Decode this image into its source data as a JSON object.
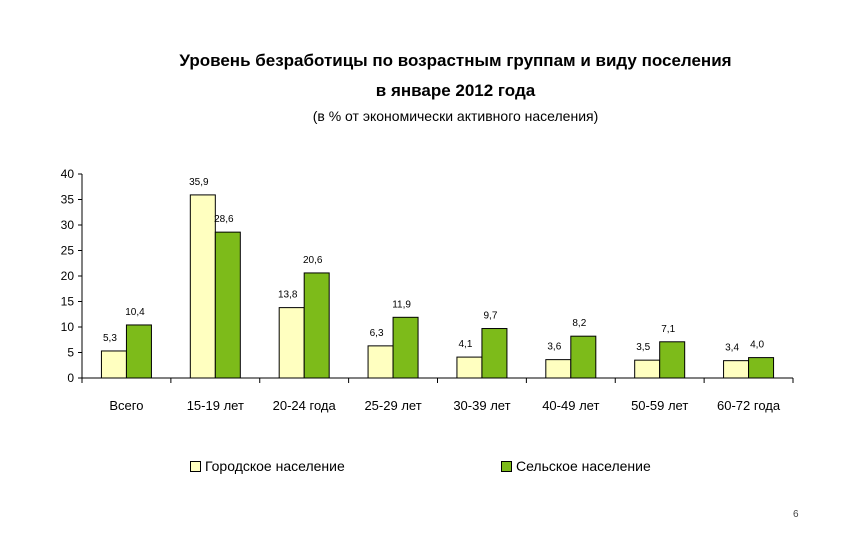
{
  "header": {
    "title_line1": "Уровень безработицы по возрастным группам и виду поселения",
    "title_line2": "в январе 2012 года",
    "subtitle": "(в % от экономически активного населения)"
  },
  "page_number": "6",
  "colors": {
    "urban": "#FFFFC0",
    "rural": "#7DBB1A"
  },
  "chart_data": {
    "type": "bar",
    "title": "Уровень безработицы по возрастным группам и виду поселения в январе 2012 года",
    "subtitle": "(в % от экономически активного населения)",
    "categories": [
      "Всего",
      "15-19 лет",
      "20-24 года",
      "25-29 лет",
      "30-39 лет",
      "40-49 лет",
      "50-59 лет",
      "60-72 года"
    ],
    "series": [
      {
        "name": "Городское население",
        "values": [
          5.3,
          35.9,
          13.8,
          6.3,
          4.1,
          3.6,
          3.5,
          3.4
        ],
        "labels": [
          "5,3",
          "35,9",
          "13,8",
          "6,3",
          "4,1",
          "3,6",
          "3,5",
          "3,4"
        ]
      },
      {
        "name": "Сельское население",
        "values": [
          10.4,
          28.6,
          20.6,
          11.9,
          9.7,
          8.2,
          7.1,
          4.0
        ],
        "labels": [
          "10,4",
          "28,6",
          "20,6",
          "11,9",
          "9,7",
          "8,2",
          "7,1",
          "4,0"
        ]
      }
    ],
    "yticks": [
      "0",
      "5",
      "10",
      "15",
      "20",
      "25",
      "30",
      "35",
      "40"
    ],
    "ylim": [
      0,
      40
    ],
    "grid": false,
    "legend": "bottom"
  }
}
